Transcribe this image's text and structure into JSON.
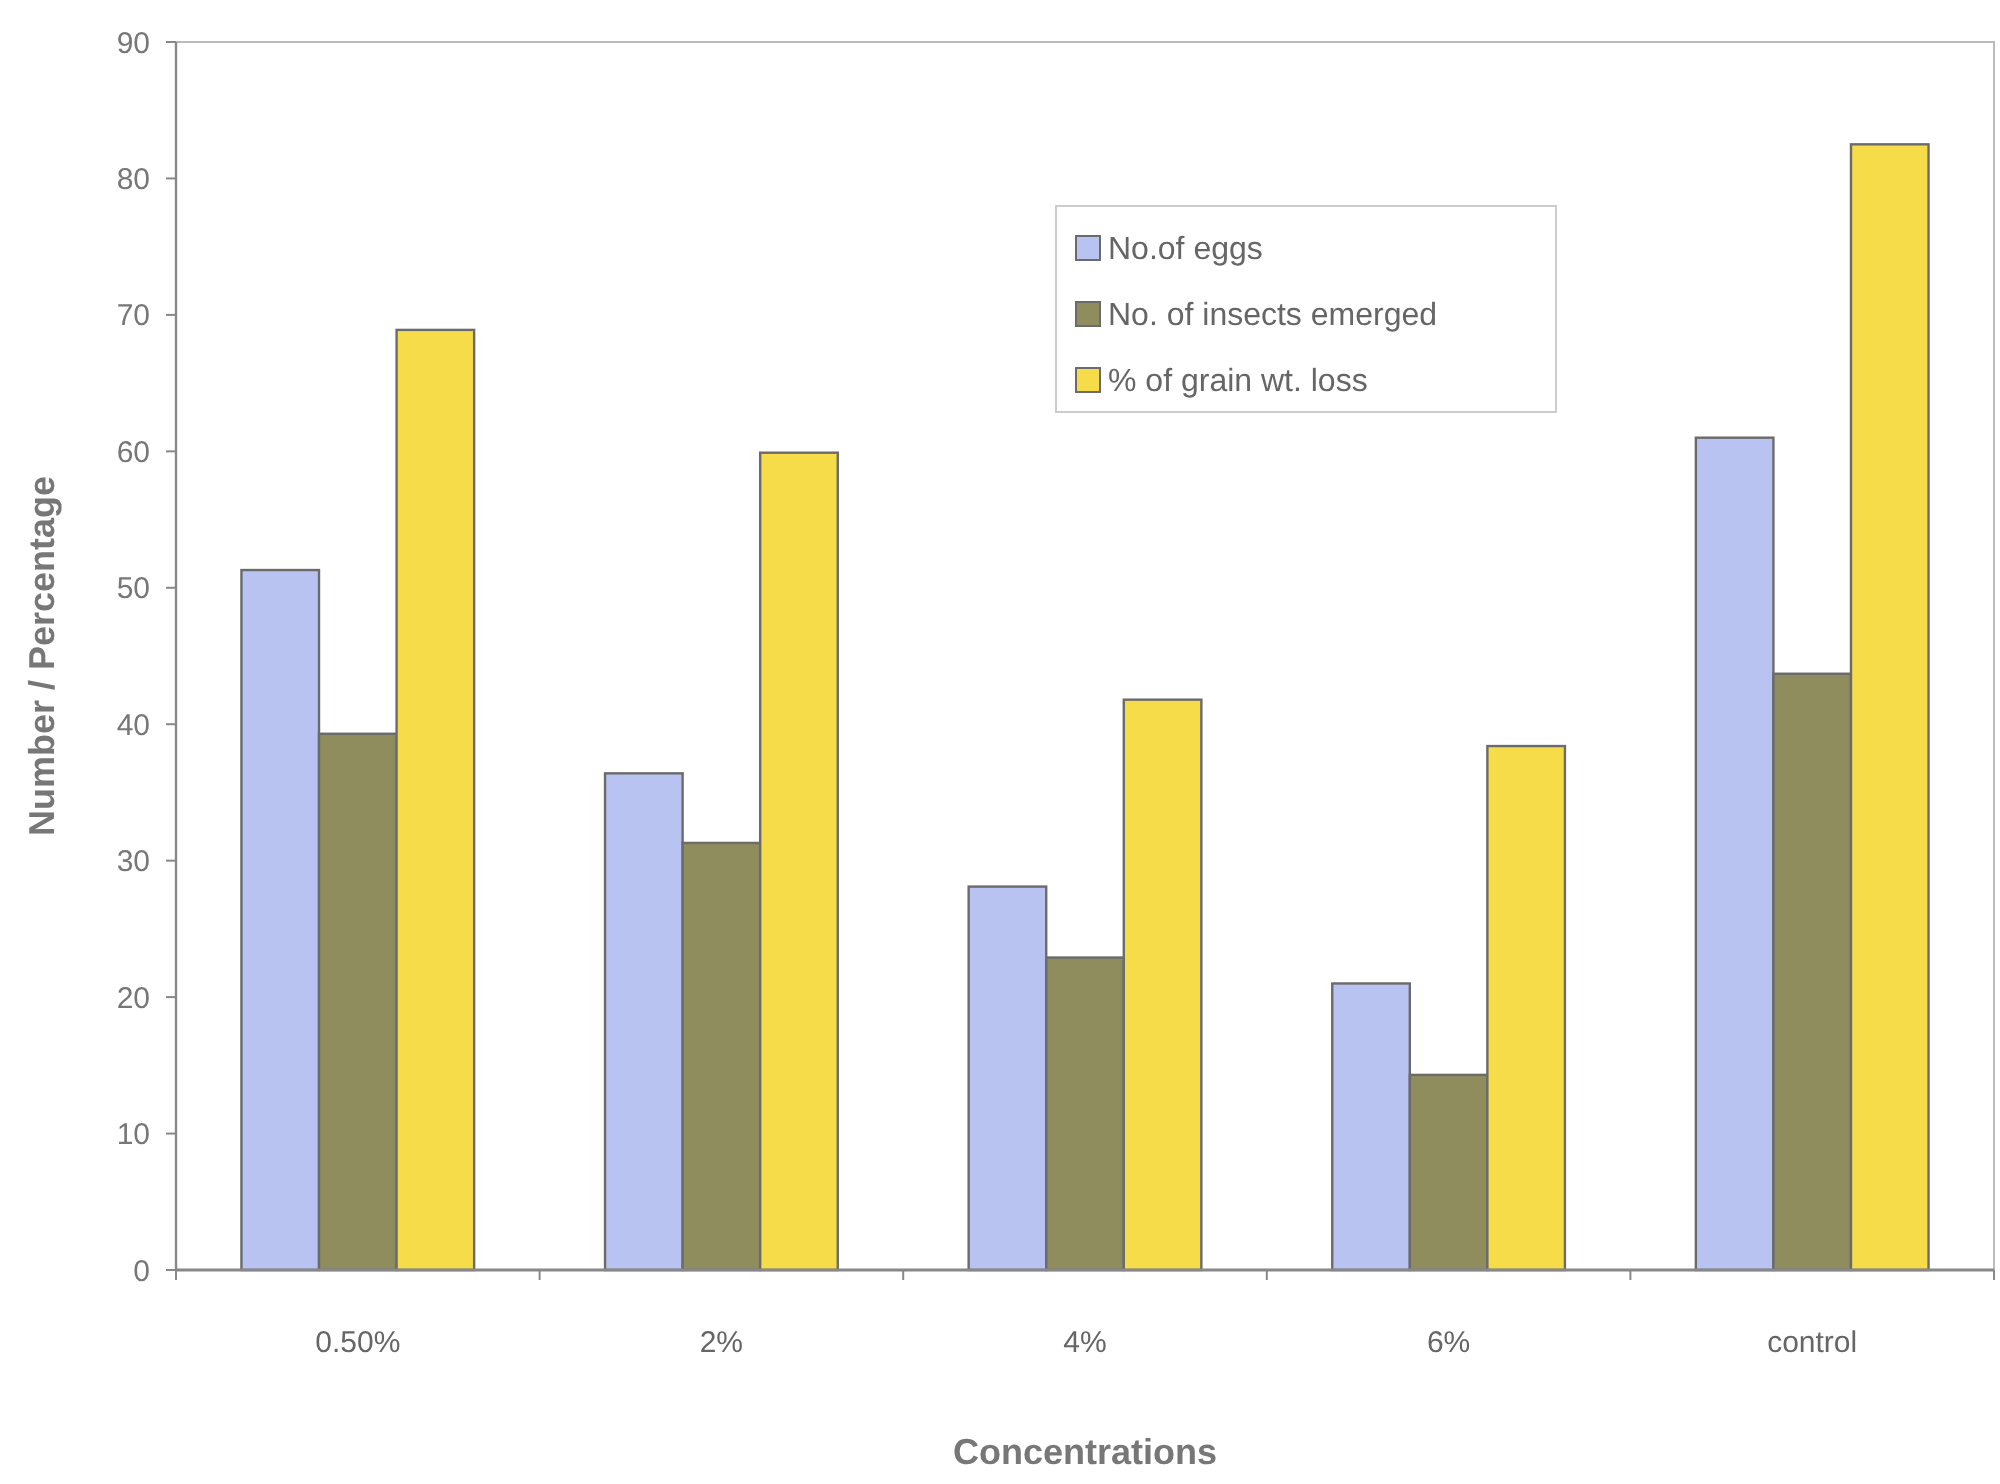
{
  "chart_data": {
    "type": "bar",
    "xlabel": "Concentrations",
    "ylabel": "Number / Percentage",
    "categories": [
      "0.50%",
      "2%",
      "4%",
      "6%",
      "control"
    ],
    "series": [
      {
        "name": "No.of eggs",
        "color": "#b8c3f2",
        "values": [
          51.3,
          36.4,
          28.1,
          21.0,
          61.0
        ]
      },
      {
        "name": "No. of insects emerged",
        "color": "#8f8c5e",
        "values": [
          39.3,
          31.3,
          22.9,
          14.3,
          43.7
        ]
      },
      {
        "name": "% of  grain wt. loss",
        "color": "#f7dc4a",
        "values": [
          68.9,
          59.9,
          41.8,
          38.4,
          82.5
        ]
      }
    ],
    "ylim": [
      0,
      90
    ],
    "yticks": [
      0,
      10,
      20,
      30,
      40,
      50,
      60,
      70,
      80,
      90
    ],
    "grid": false,
    "legend": "top"
  }
}
